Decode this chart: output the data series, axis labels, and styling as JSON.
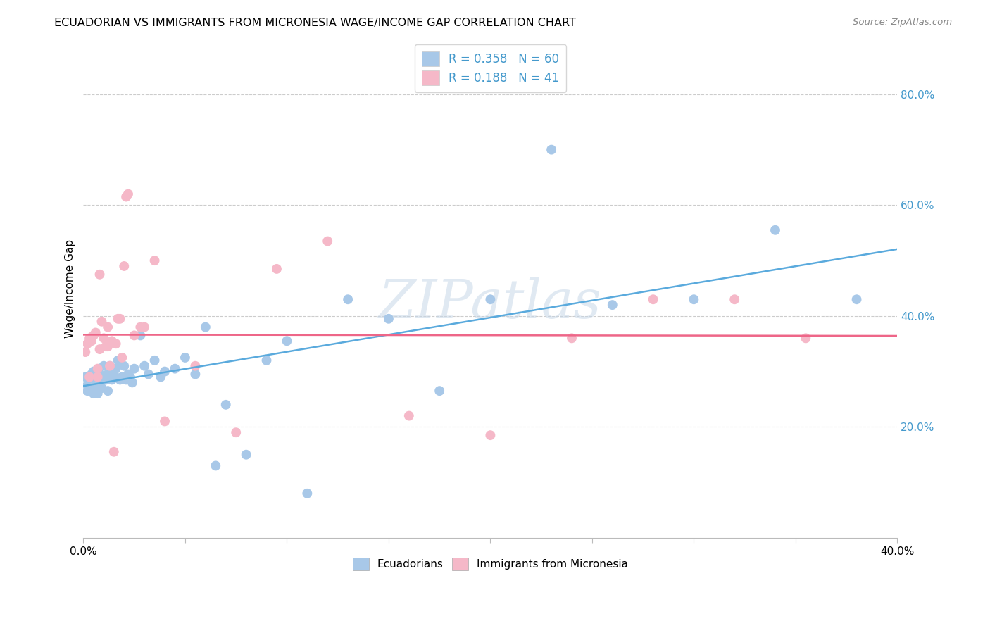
{
  "title": "ECUADORIAN VS IMMIGRANTS FROM MICRONESIA WAGE/INCOME GAP CORRELATION CHART",
  "source": "Source: ZipAtlas.com",
  "ylabel": "Wage/Income Gap",
  "legend_labels": [
    "Ecuadorians",
    "Immigrants from Micronesia"
  ],
  "r_blue": 0.358,
  "n_blue": 60,
  "r_pink": 0.188,
  "n_pink": 41,
  "blue_color": "#a8c8e8",
  "pink_color": "#f5b8c8",
  "blue_line_color": "#5aaadd",
  "pink_line_color": "#ee6688",
  "text_blue_color": "#4499cc",
  "watermark": "ZIPatlas",
  "xlim": [
    0.0,
    0.4
  ],
  "ylim": [
    0.0,
    0.9
  ],
  "ytick_vals": [
    0.2,
    0.4,
    0.6,
    0.8
  ],
  "blue_x": [
    0.001,
    0.002,
    0.002,
    0.003,
    0.003,
    0.004,
    0.004,
    0.005,
    0.005,
    0.006,
    0.006,
    0.007,
    0.007,
    0.008,
    0.008,
    0.009,
    0.01,
    0.01,
    0.011,
    0.012,
    0.012,
    0.013,
    0.014,
    0.015,
    0.015,
    0.016,
    0.017,
    0.018,
    0.019,
    0.02,
    0.021,
    0.022,
    0.023,
    0.024,
    0.025,
    0.028,
    0.03,
    0.032,
    0.035,
    0.038,
    0.04,
    0.045,
    0.05,
    0.055,
    0.06,
    0.065,
    0.07,
    0.08,
    0.09,
    0.1,
    0.11,
    0.13,
    0.15,
    0.175,
    0.2,
    0.23,
    0.26,
    0.3,
    0.34,
    0.38
  ],
  "blue_y": [
    0.29,
    0.275,
    0.265,
    0.285,
    0.27,
    0.28,
    0.295,
    0.3,
    0.26,
    0.29,
    0.275,
    0.285,
    0.26,
    0.28,
    0.295,
    0.27,
    0.29,
    0.31,
    0.285,
    0.295,
    0.265,
    0.31,
    0.285,
    0.29,
    0.295,
    0.305,
    0.32,
    0.285,
    0.29,
    0.31,
    0.285,
    0.295,
    0.29,
    0.28,
    0.305,
    0.365,
    0.31,
    0.295,
    0.32,
    0.29,
    0.3,
    0.305,
    0.325,
    0.295,
    0.38,
    0.13,
    0.24,
    0.15,
    0.32,
    0.355,
    0.08,
    0.43,
    0.395,
    0.265,
    0.43,
    0.7,
    0.42,
    0.43,
    0.555,
    0.43
  ],
  "pink_x": [
    0.001,
    0.002,
    0.003,
    0.003,
    0.004,
    0.005,
    0.006,
    0.007,
    0.007,
    0.008,
    0.008,
    0.009,
    0.01,
    0.011,
    0.012,
    0.012,
    0.013,
    0.014,
    0.015,
    0.016,
    0.017,
    0.018,
    0.019,
    0.02,
    0.021,
    0.022,
    0.025,
    0.028,
    0.03,
    0.035,
    0.04,
    0.055,
    0.075,
    0.095,
    0.12,
    0.16,
    0.2,
    0.24,
    0.28,
    0.32,
    0.355
  ],
  "pink_y": [
    0.335,
    0.35,
    0.36,
    0.29,
    0.355,
    0.365,
    0.37,
    0.29,
    0.305,
    0.34,
    0.475,
    0.39,
    0.36,
    0.345,
    0.38,
    0.345,
    0.31,
    0.355,
    0.155,
    0.35,
    0.395,
    0.395,
    0.325,
    0.49,
    0.615,
    0.62,
    0.365,
    0.38,
    0.38,
    0.5,
    0.21,
    0.31,
    0.19,
    0.485,
    0.535,
    0.22,
    0.185,
    0.36,
    0.43,
    0.43,
    0.36
  ]
}
